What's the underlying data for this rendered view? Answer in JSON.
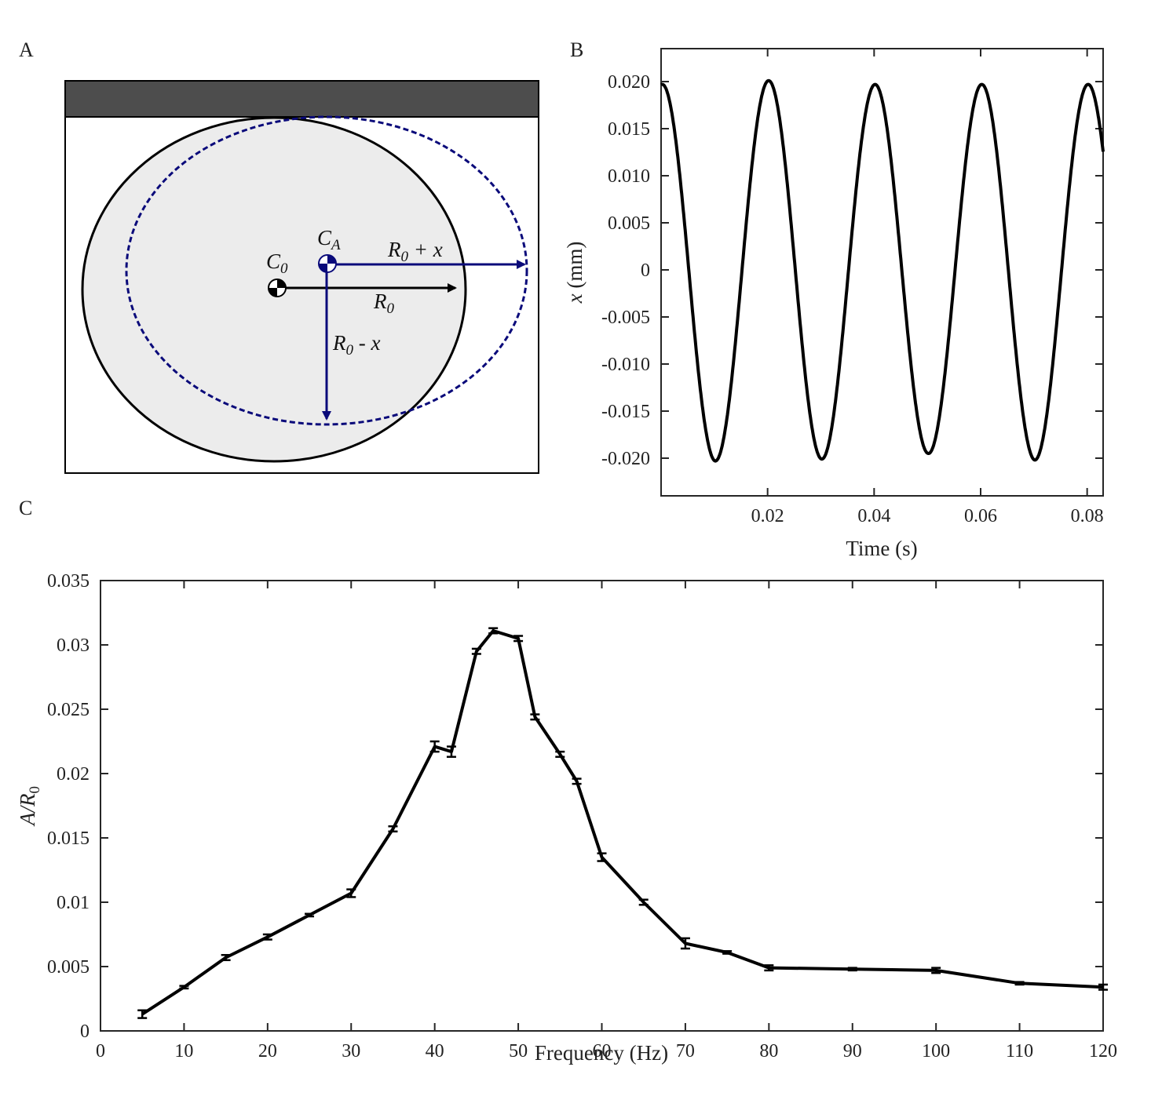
{
  "panels": {
    "a": {
      "letter": "A"
    },
    "b": {
      "letter": "B"
    },
    "c": {
      "letter": "C"
    }
  },
  "diagram": {
    "center_original": "C",
    "center_original_sub": "0",
    "center_actual": "C",
    "center_actual_sub": "A",
    "radius_label_base": "R",
    "radius_label_sub": "0",
    "radius_plus_op": " + x",
    "radius_minus_op": " - x",
    "colors": {
      "wall": "#4d4d4d",
      "drop_fill": "#ececec",
      "deformed_outline": "#0a0a7a",
      "radius_arrow": "#000000",
      "deformed_arrow": "#0a0a7a"
    }
  },
  "chart_data": [
    {
      "id": "B",
      "type": "line",
      "xlabel": "Time (s)",
      "ylabel_var": "x",
      "ylabel_unit": " (mm)",
      "xlim": [
        0.0,
        0.083
      ],
      "ylim": [
        -0.024,
        0.0235
      ],
      "xticks": [
        0.02,
        0.04,
        0.06,
        0.08
      ],
      "xtick_labels": [
        "0.02",
        "0.04",
        "0.06",
        "0.08"
      ],
      "yticks": [
        0.02,
        0.015,
        0.01,
        0.005,
        0,
        -0.005,
        -0.01,
        -0.015,
        -0.02
      ],
      "ytick_labels": [
        "0.020",
        "0.015",
        "0.010",
        "0.005",
        "0",
        "-0.005",
        "-0.010",
        "-0.015",
        "-0.020"
      ],
      "series": [
        {
          "color": "#000000",
          "model": "x(t) = A(t)·cos(2π·f·(t − 0.0002)), f = 50 Hz",
          "peaks": [
            {
              "t": 0.0002,
              "x": 0.0197
            },
            {
              "t": 0.0101,
              "x": -0.0203
            },
            {
              "t": 0.0201,
              "x": 0.0201
            },
            {
              "t": 0.0301,
              "x": -0.0201
            },
            {
              "t": 0.0401,
              "x": 0.0197
            },
            {
              "t": 0.0501,
              "x": -0.0195
            },
            {
              "t": 0.0602,
              "x": 0.0197
            },
            {
              "t": 0.0702,
              "x": -0.0202
            },
            {
              "t": 0.0802,
              "x": 0.0197
            }
          ],
          "end": {
            "t": 0.083,
            "x": 0.0117
          }
        }
      ]
    },
    {
      "id": "C",
      "type": "line",
      "xlabel": "Frequency (Hz)",
      "ylabel_base": "A/R",
      "ylabel_sub": "0",
      "xlim": [
        0,
        120
      ],
      "ylim": [
        0,
        0.035
      ],
      "xticks": [
        0,
        10,
        20,
        30,
        40,
        50,
        60,
        70,
        80,
        90,
        100,
        110,
        120
      ],
      "xtick_labels": [
        "0",
        "10",
        "20",
        "30",
        "40",
        "50",
        "60",
        "70",
        "80",
        "90",
        "100",
        "110",
        "120"
      ],
      "yticks": [
        0,
        0.005,
        0.01,
        0.015,
        0.02,
        0.025,
        0.03,
        0.035
      ],
      "ytick_labels": [
        "0",
        "0.005",
        "0.01",
        "0.015",
        "0.02",
        "0.025",
        "0.03",
        "0.035"
      ],
      "series": [
        {
          "color": "#000000",
          "x": [
            5,
            10,
            15,
            20,
            25,
            30,
            35,
            40,
            42,
            45,
            47,
            50,
            52,
            55,
            57,
            60,
            65,
            70,
            75,
            80,
            90,
            100,
            110,
            120
          ],
          "y": [
            0.0013,
            0.0034,
            0.0057,
            0.0073,
            0.009,
            0.0107,
            0.0157,
            0.0221,
            0.0217,
            0.0295,
            0.0311,
            0.0305,
            0.0244,
            0.0215,
            0.0194,
            0.0135,
            0.01,
            0.0068,
            0.0061,
            0.0049,
            0.0048,
            0.0047,
            0.0037,
            0.0034
          ],
          "err": [
            0.0003,
            0.0001,
            0.0002,
            0.0002,
            0.0001,
            0.0003,
            0.0002,
            0.0004,
            0.0004,
            0.0002,
            0.0002,
            0.0002,
            0.0002,
            0.0002,
            0.0002,
            0.0003,
            0.0002,
            0.0004,
            0.0001,
            0.0002,
            0.0001,
            0.0002,
            0.0001,
            0.0002
          ]
        }
      ]
    }
  ]
}
